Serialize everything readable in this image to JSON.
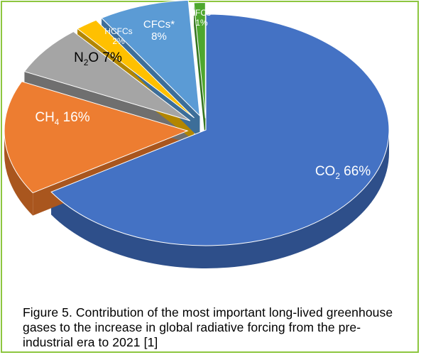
{
  "chart_data": {
    "type": "pie",
    "title": "",
    "slices": [
      {
        "label": "CO",
        "sub": "2",
        "pct_text": "66%",
        "value": 66,
        "color": "#4472c4",
        "side_color": "#2e4f8a",
        "label_color": "#ffffff"
      },
      {
        "label": "CH",
        "sub": "4",
        "pct_text": "16%",
        "value": 16,
        "color": "#ed7d31",
        "side_color": "#a9561e",
        "label_color": "#ffffff"
      },
      {
        "label": "N",
        "sub": "2",
        "suffix": "O",
        "pct_text": "7%",
        "value": 7,
        "color": "#a5a5a5",
        "side_color": "#6f6f6f",
        "label_color": "#000000"
      },
      {
        "label": "HCFCs",
        "sub": "",
        "pct_text": "2%",
        "value": 2,
        "color": "#ffc000",
        "side_color": "#b38600",
        "label_color": "#ffffff"
      },
      {
        "label": "CFCs*",
        "sub": "",
        "pct_text": "8%",
        "value": 8,
        "color": "#5b9bd5",
        "side_color": "#3d6e99",
        "label_color": "#ffffff"
      },
      {
        "label": "HFCs*",
        "sub": "",
        "pct_text": "1%",
        "value": 1,
        "color": "#4ea72e",
        "side_color": "#357520",
        "label_color": "#ffffff"
      }
    ],
    "legend": "none"
  },
  "caption": "Figure 5. Contribution of the most important long-lived greenhouse gases to the increase in global radiative forcing from the pre-industrial era to 2021 [1]"
}
